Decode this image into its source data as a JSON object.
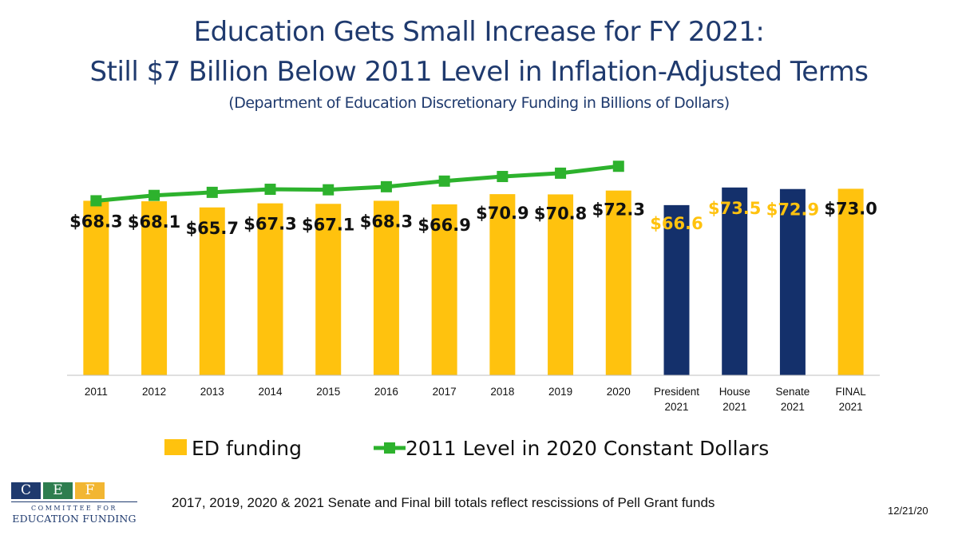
{
  "title_line1": "Education Gets Small Increase for FY 2021:",
  "title_line2": "Still $7 Billion Below 2011 Level in Inflation-Adjusted Terms",
  "subtitle": "(Department of Education Discretionary Funding in Billions of Dollars)",
  "footnote": "2017, 2019, 2020 & 2021 Senate and Final bill totals reflect rescissions of Pell Grant funds",
  "date": "12/21/20",
  "logo": {
    "letters": [
      "C",
      "E",
      "F"
    ],
    "line1": "COMMITTEE FOR",
    "line2": "EDUCATION FUNDING"
  },
  "colors": {
    "gold": "#FFC20E",
    "navy": "#14306B",
    "green": "#2DB22D",
    "title": "#1F3A6E"
  },
  "chart_data": {
    "type": "bar",
    "title": "Education Gets Small Increase for FY 2021: Still $7 Billion Below 2011 Level in Inflation-Adjusted Terms",
    "subtitle": "(Department of Education Discretionary Funding in Billions of Dollars)",
    "xlabel": "",
    "ylabel": "",
    "ylim": [
      0,
      80
    ],
    "grid": false,
    "legend_position": "bottom",
    "categories": [
      "2011",
      "2012",
      "2013",
      "2014",
      "2015",
      "2016",
      "2017",
      "2018",
      "2019",
      "2020",
      "President 2021",
      "House 2021",
      "Senate 2021",
      "FINAL 2021"
    ],
    "series": [
      {
        "name": "ED funding",
        "type": "bar",
        "values": [
          68.3,
          68.1,
          65.7,
          67.3,
          67.1,
          68.3,
          66.9,
          70.9,
          70.8,
          72.3,
          66.6,
          73.5,
          72.9,
          73.0
        ],
        "labels": [
          "$68.3",
          "$68.1",
          "$65.7",
          "$67.3",
          "$67.1",
          "$68.3",
          "$66.9",
          "$70.9",
          "$70.8",
          "$72.3",
          "$66.6",
          "$73.5",
          "$72.9",
          "$73.0"
        ],
        "bar_colors": [
          "gold",
          "gold",
          "gold",
          "gold",
          "gold",
          "gold",
          "gold",
          "gold",
          "gold",
          "gold",
          "navy",
          "navy",
          "navy",
          "gold"
        ],
        "label_colors": [
          "dark",
          "dark",
          "dark",
          "dark",
          "dark",
          "dark",
          "dark",
          "dark",
          "dark",
          "dark",
          "gold",
          "gold",
          "gold",
          "dark"
        ]
      },
      {
        "name": "2011 Level in 2020 Constant Dollars",
        "type": "line",
        "values": [
          68.3,
          70.4,
          71.6,
          72.8,
          72.6,
          73.8,
          76.0,
          77.8,
          79.1,
          81.8,
          null,
          null,
          null,
          null
        ]
      }
    ]
  }
}
